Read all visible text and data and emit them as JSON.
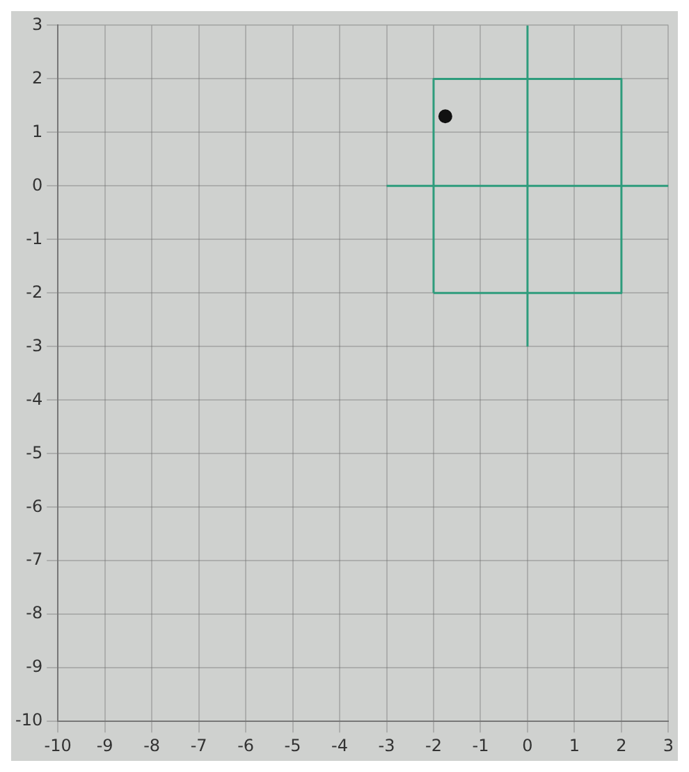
{
  "chart_data": {
    "type": "scatter",
    "xlim": [
      -10,
      3
    ],
    "ylim": [
      -10,
      3
    ],
    "xticks": [
      -10,
      -9,
      -8,
      -7,
      -6,
      -5,
      -4,
      -3,
      -2,
      -1,
      0,
      1,
      2,
      3
    ],
    "yticks": [
      -10,
      -9,
      -8,
      -7,
      -6,
      -5,
      -4,
      -3,
      -2,
      -1,
      0,
      1,
      2,
      3
    ],
    "grid": true,
    "legend": false,
    "series": [
      {
        "type": "line",
        "color": "#2e9c7c",
        "x": [
          -2,
          -2,
          2,
          2
        ],
        "values": [
          -2,
          2,
          2,
          -2
        ],
        "marker": "none"
      },
      {
        "type": "line",
        "color": "#2e9c7c",
        "x": [
          -2,
          2
        ],
        "values": [
          -2,
          -2
        ],
        "marker": "none"
      },
      {
        "type": "line",
        "color": "#2e9c7c",
        "x": [
          -3,
          3
        ],
        "values": [
          0,
          0
        ],
        "marker": "none"
      },
      {
        "type": "line",
        "color": "#2e9c7c",
        "x": [
          0,
          0
        ],
        "values": [
          -3,
          3
        ],
        "marker": "none"
      },
      {
        "type": "scatter",
        "color": "#111111",
        "x": [
          -1.75
        ],
        "values": [
          1.3
        ],
        "marker": "circle"
      }
    ]
  }
}
